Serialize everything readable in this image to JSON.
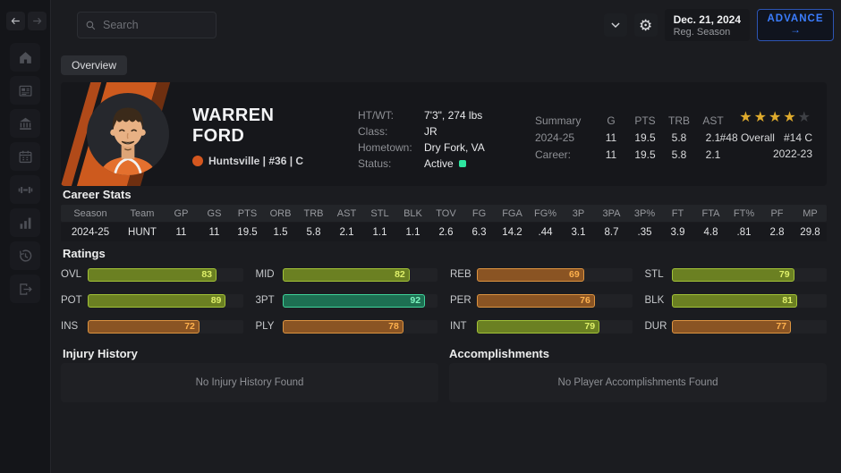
{
  "topbar": {
    "search_placeholder": "Search",
    "date_line1": "Dec. 21, 2024",
    "date_line2": "Reg. Season",
    "advance_label": "ADVANCE",
    "advance_arrow": "→"
  },
  "tabs": {
    "overview": "Overview"
  },
  "sidebar": {
    "icons": [
      "home",
      "news",
      "arena",
      "schedule",
      "training",
      "stats",
      "history",
      "exit"
    ]
  },
  "player": {
    "first_name": "WARREN",
    "last_name": "FORD",
    "team_line": "Huntsville | #36 | C",
    "vitals": [
      {
        "label": "HT/WT:",
        "value": "7'3\", 274 lbs",
        "status_dot": false
      },
      {
        "label": "Class:",
        "value": "JR",
        "status_dot": false
      },
      {
        "label": "Hometown:",
        "value": "Dry Fork, VA",
        "status_dot": false
      },
      {
        "label": "Status:",
        "value": "Active",
        "status_dot": true
      }
    ],
    "summary": {
      "headers": [
        "Summary",
        "G",
        "PTS",
        "TRB",
        "AST"
      ],
      "rows": [
        {
          "label": "2024-25",
          "values": [
            "11",
            "19.5",
            "5.8",
            "2.1"
          ]
        },
        {
          "label": "Career:",
          "values": [
            "11",
            "19.5",
            "5.8",
            "2.1"
          ]
        }
      ]
    },
    "ranking": {
      "stars_filled": 4,
      "stars_total": 5,
      "overall": "#48 Overall",
      "position_rank": "#14 C",
      "season": "2022-23"
    }
  },
  "career": {
    "title": "Career Stats",
    "headers": [
      "Season",
      "Team",
      "GP",
      "GS",
      "PTS",
      "ORB",
      "TRB",
      "AST",
      "STL",
      "BLK",
      "TOV",
      "FG",
      "FGA",
      "FG%",
      "3P",
      "3PA",
      "3P%",
      "FT",
      "FTA",
      "FT%",
      "PF",
      "MP"
    ],
    "row": [
      "2024-25",
      "HUNT",
      "11",
      "11",
      "19.5",
      "1.5",
      "5.8",
      "2.1",
      "1.1",
      "1.1",
      "2.6",
      "6.3",
      "14.2",
      ".44",
      "3.1",
      "8.7",
      ".35",
      "3.9",
      "4.8",
      ".81",
      "2.8",
      "29.8"
    ]
  },
  "ratings": {
    "title": "Ratings",
    "items": [
      {
        "label": "OVL",
        "value": 83,
        "color": "green"
      },
      {
        "label": "MID",
        "value": 82,
        "color": "green"
      },
      {
        "label": "REB",
        "value": 69,
        "color": "orange"
      },
      {
        "label": "STL",
        "value": 79,
        "color": "green"
      },
      {
        "label": "POT",
        "value": 89,
        "color": "green"
      },
      {
        "label": "3PT",
        "value": 92,
        "color": "teal"
      },
      {
        "label": "PER",
        "value": 76,
        "color": "orange"
      },
      {
        "label": "BLK",
        "value": 81,
        "color": "green"
      },
      {
        "label": "INS",
        "value": 72,
        "color": "orange"
      },
      {
        "label": "PLY",
        "value": 78,
        "color": "orange"
      },
      {
        "label": "INT",
        "value": 79,
        "color": "green"
      },
      {
        "label": "DUR",
        "value": 77,
        "color": "orange"
      }
    ]
  },
  "injury": {
    "title": "Injury History",
    "empty_text": "No Injury History Found"
  },
  "accomplishments": {
    "title": "Accomplishments",
    "empty_text": "No Player Accomplishments Found"
  },
  "colors": {
    "accent_orange": "#cd5a1e",
    "rating_green": "#6b8022",
    "rating_teal": "#1d6f52",
    "rating_orange": "#8a5423",
    "advance_blue": "#3b7dff",
    "status_green": "#2ee6a0",
    "star_gold": "#dfab2d"
  }
}
